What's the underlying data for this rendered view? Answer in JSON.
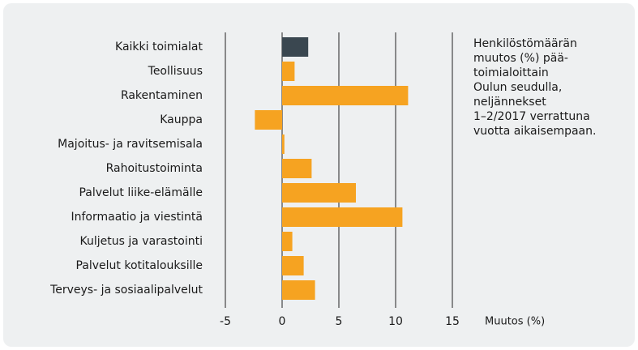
{
  "chart_data": {
    "type": "bar",
    "orientation": "horizontal",
    "categories": [
      "Kaikki toimialat",
      "Teollisuus",
      "Rakentaminen",
      "Kauppa",
      "Majoitus- ja ravitsemisala",
      "Rahoitustoiminta",
      "Palvelut liike-elämälle",
      "Informaatio ja viestintä",
      "Kuljetus ja varastointi",
      "Palvelut kotitalouksille",
      "Terveys- ja sosiaalipalvelut"
    ],
    "values": [
      2.3,
      1.1,
      11.1,
      -2.4,
      0.2,
      2.6,
      6.5,
      10.6,
      0.9,
      1.9,
      2.9
    ],
    "colors": [
      "#3a4750",
      "#f6a321",
      "#f6a321",
      "#f6a321",
      "#f6a321",
      "#f6a321",
      "#f6a321",
      "#f6a321",
      "#f6a321",
      "#f6a321",
      "#f6a321"
    ],
    "xlim": [
      -5,
      15
    ],
    "xticks": [
      -5,
      0,
      5,
      10,
      15
    ],
    "grid": true,
    "xlabel": "Muutos (%)",
    "annotation": [
      "Henkilöstömäärän",
      "muutos (%) pää-",
      "toimialoittain",
      "Oulun seudulla,",
      "neljännekset",
      "1–2/2017 verrattuna",
      "vuotta aikaisempaan."
    ]
  }
}
